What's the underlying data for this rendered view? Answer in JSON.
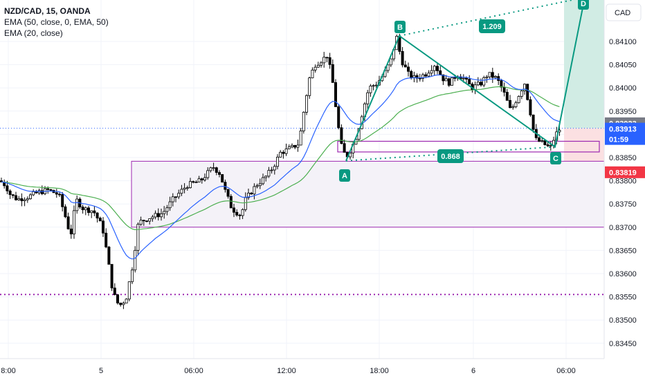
{
  "legend": {
    "symbol": "NZD/CAD, 15, OANDA",
    "ema1": "EMA (50, close, 0, EMA, 50)",
    "ema2": "EMA (20, close)"
  },
  "currency_button": "CAD",
  "price_tags": {
    "last_close": "0.83923",
    "current": "0.83913",
    "countdown": "01:59",
    "stop": "0.83819"
  },
  "pattern_labels": {
    "A": "A",
    "B": "B",
    "C": "C",
    "D": "D"
  },
  "ratios": {
    "xab": "1.209",
    "bc": "0.868"
  },
  "colors": {
    "bull": "#089981",
    "bear": "#f23645",
    "candle": "#000000",
    "ema_fast": "#2962ff",
    "ema_slow": "#4caf50",
    "pattern": "#089981",
    "zone": "#9c27b0",
    "target_fill": "#d1ece4",
    "stop_fill": "#fbe0e2",
    "dotted_level": "#9c27b0",
    "current_price_line": "#2962ff"
  },
  "chart_data": {
    "type": "candlestick",
    "instrument": "NZD/CAD",
    "timeframe": "15",
    "source": "OANDA",
    "y_ticks": [
      "0.84100",
      "0.84050",
      "0.84000",
      "0.83950",
      "0.83900",
      "0.83850",
      "0.83800",
      "0.83750",
      "0.83700",
      "0.83650",
      "0.83600",
      "0.83550",
      "0.83500",
      "0.83450"
    ],
    "x_ticks": [
      "8:00",
      "5",
      "06:00",
      "12:00",
      "18:00",
      "6",
      "06:00"
    ],
    "ylim": [
      0.83435,
      0.8415
    ],
    "series": [
      {
        "name": "EMA (50, close, 0, EMA, 50)",
        "color": "#4caf50"
      },
      {
        "name": "EMA (20, close)",
        "color": "#2962ff"
      }
    ],
    "pattern": {
      "points": [
        {
          "label": "A",
          "price": 0.83843
        },
        {
          "label": "B",
          "price": 0.84112
        },
        {
          "label": "C",
          "price": 0.83873
        },
        {
          "label": "D",
          "price": 0.84195
        }
      ],
      "ratios": {
        "AB-projection": 1.209,
        "BC-retracement": 0.868
      }
    },
    "levels": {
      "upper_dotted": 0.84195,
      "lower_dotted": 0.83555,
      "current_price": 0.83913,
      "last_close": 0.83923,
      "stop": 0.83819
    }
  }
}
